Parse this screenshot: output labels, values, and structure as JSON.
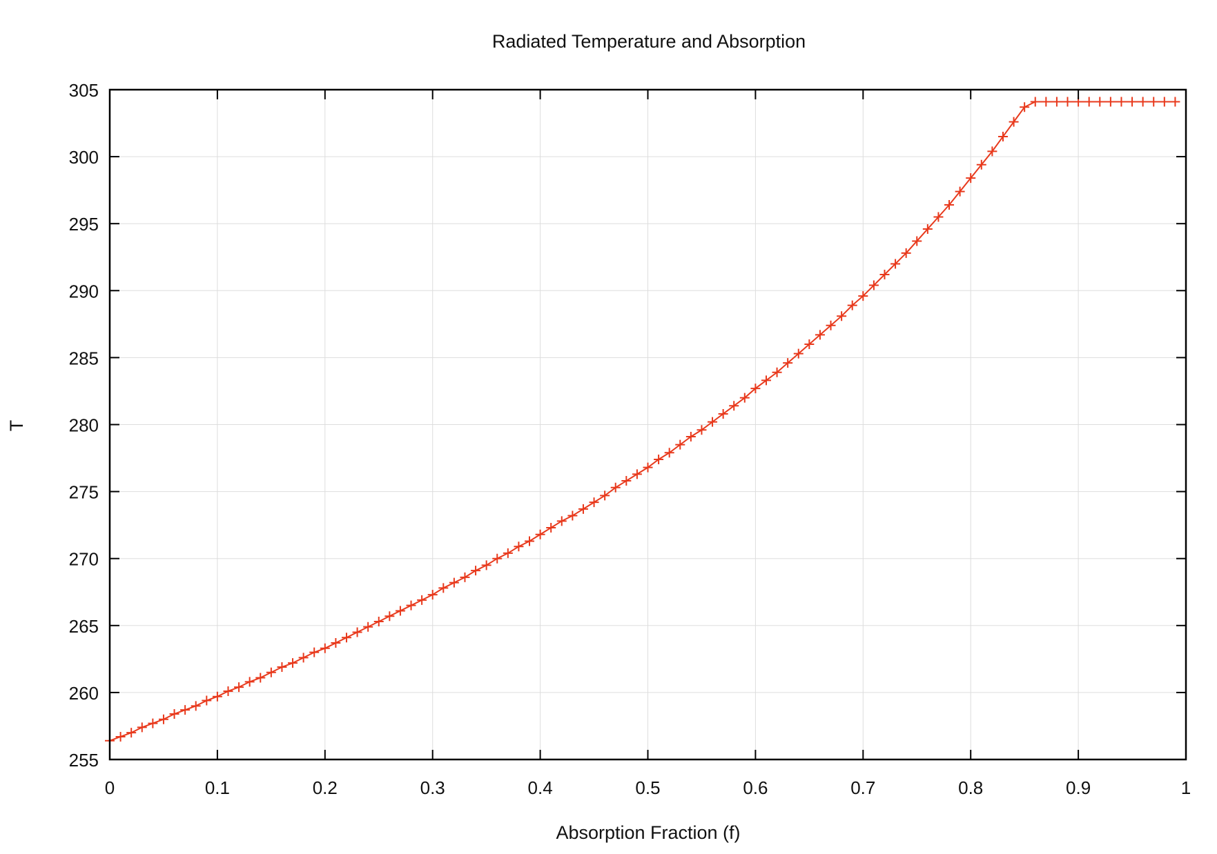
{
  "chart_data": {
    "type": "line",
    "title": "Radiated Temperature and Absorption",
    "xlabel": "Absorption Fraction (f)",
    "ylabel": "T",
    "xlim": [
      0,
      1
    ],
    "ylim": [
      255,
      305
    ],
    "x_ticks": [
      "0",
      "0.1",
      "0.2",
      "0.3",
      "0.4",
      "0.5",
      "0.6",
      "0.7",
      "0.8",
      "0.9",
      "1"
    ],
    "y_ticks": [
      "255",
      "260",
      "265",
      "270",
      "275",
      "280",
      "285",
      "290",
      "295",
      "300",
      "305"
    ],
    "grid": true,
    "marker": "plus",
    "series": [
      {
        "color": "#e8391c",
        "x": [
          0,
          0.01,
          0.02,
          0.03,
          0.04,
          0.05,
          0.06,
          0.07,
          0.08,
          0.09,
          0.1,
          0.11,
          0.12,
          0.13,
          0.14,
          0.15,
          0.16,
          0.17,
          0.18,
          0.19,
          0.2,
          0.21,
          0.22,
          0.23,
          0.24,
          0.25,
          0.26,
          0.27,
          0.28,
          0.29,
          0.3,
          0.31,
          0.32,
          0.33,
          0.34,
          0.35,
          0.36,
          0.37,
          0.38,
          0.39,
          0.4,
          0.41,
          0.42,
          0.43,
          0.44,
          0.45,
          0.46,
          0.47,
          0.48,
          0.49,
          0.5,
          0.51,
          0.52,
          0.53,
          0.54,
          0.55,
          0.56,
          0.57,
          0.58,
          0.59,
          0.6,
          0.61,
          0.62,
          0.63,
          0.64,
          0.65,
          0.66,
          0.67,
          0.68,
          0.69,
          0.7,
          0.71,
          0.72,
          0.73,
          0.74,
          0.75,
          0.76,
          0.77,
          0.78,
          0.79,
          0.8,
          0.81,
          0.82,
          0.83,
          0.84,
          0.85,
          0.86,
          0.87,
          0.88,
          0.89,
          0.9,
          0.91,
          0.92,
          0.93,
          0.94,
          0.95,
          0.96,
          0.97,
          0.98,
          0.99
        ],
        "values": [
          256.4,
          256.7,
          257.0,
          257.4,
          257.7,
          258.0,
          258.4,
          258.7,
          259.0,
          259.4,
          259.7,
          260.1,
          260.4,
          260.8,
          261.1,
          261.5,
          261.9,
          262.2,
          262.6,
          263.0,
          263.3,
          263.7,
          264.1,
          264.5,
          264.9,
          265.3,
          265.7,
          266.1,
          266.5,
          266.9,
          267.3,
          267.8,
          268.2,
          268.6,
          269.1,
          269.5,
          270.0,
          270.4,
          270.9,
          271.3,
          271.8,
          272.3,
          272.8,
          273.2,
          273.7,
          274.2,
          274.7,
          275.3,
          275.8,
          276.3,
          276.8,
          277.4,
          277.9,
          278.5,
          279.1,
          279.6,
          280.2,
          280.8,
          281.4,
          282.0,
          282.7,
          283.3,
          283.9,
          284.6,
          285.3,
          286.0,
          286.7,
          287.4,
          288.1,
          288.9,
          289.6,
          290.4,
          291.2,
          292.0,
          292.8,
          293.7,
          294.6,
          295.5,
          296.4,
          297.4,
          298.4,
          299.4,
          300.4,
          301.5,
          302.6,
          303.7,
          304.1,
          304.1,
          304.1,
          304.1,
          304.1,
          304.1,
          304.1,
          304.1,
          304.1,
          304.1,
          304.1,
          304.1,
          304.1,
          304.1
        ]
      }
    ]
  }
}
